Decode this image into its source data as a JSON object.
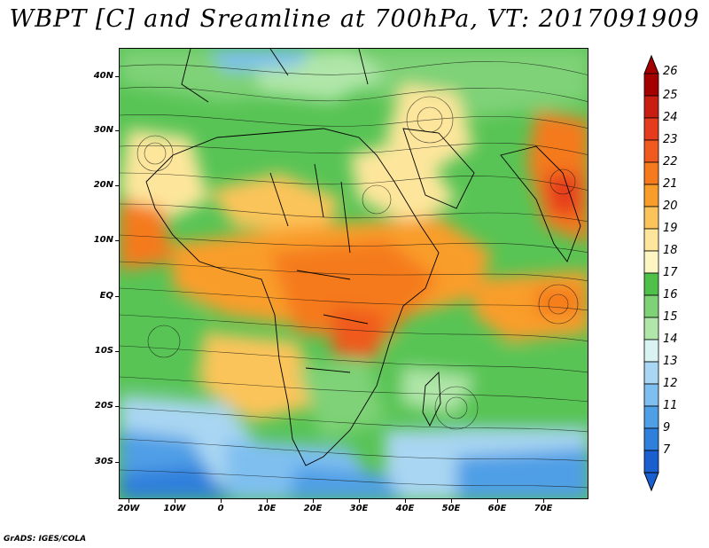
{
  "title": "WBPT [C] and Sreamline at 700hPa, VT: 2017091909",
  "footer": "GrADS: IGES/COLA",
  "map": {
    "lat_labels": [
      "40N",
      "30N",
      "20N",
      "10N",
      "EQ",
      "10S",
      "20S",
      "30S"
    ],
    "lon_labels": [
      "20W",
      "10W",
      "0",
      "10E",
      "20E",
      "30E",
      "40E",
      "50E",
      "60E",
      "70E"
    ],
    "lon_range": [
      -22,
      80
    ],
    "lat_range": [
      -36,
      45
    ]
  },
  "colorbar": {
    "labels": [
      "26",
      "25",
      "24",
      "23",
      "22",
      "21",
      "20",
      "19",
      "18",
      "17",
      "16",
      "15",
      "14",
      "13",
      "12",
      "11",
      "9",
      "7"
    ],
    "colors": [
      "#a50000",
      "#c81e12",
      "#e63c1e",
      "#f05a1e",
      "#f57a1e",
      "#f99d2a",
      "#fbc45a",
      "#fde69b",
      "#fdf5c2",
      "#4fc04a",
      "#7fd277",
      "#b0e6a9",
      "#d9f2f2",
      "#a9d6f2",
      "#7fbff0",
      "#4f9fe6",
      "#2f7fdc",
      "#1a5fd0"
    ],
    "top_arrow_color": "#a50000",
    "bottom_arrow_color": "#1a5fd0"
  }
}
